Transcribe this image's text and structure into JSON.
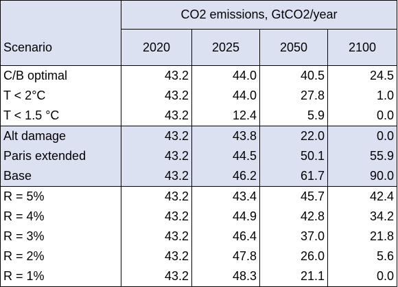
{
  "table": {
    "title": "CO2 emissions, GtCO2/year",
    "scenario_header": "Scenario",
    "years": [
      "2020",
      "2025",
      "2050",
      "2100"
    ],
    "rows": [
      {
        "scenario": "C/B optimal",
        "values": [
          "43.2",
          "44.0",
          "40.5",
          "24.5"
        ]
      },
      {
        "scenario": "T < 2°C",
        "values": [
          "43.2",
          "44.0",
          "27.8",
          "1.0"
        ]
      },
      {
        "scenario": "T < 1.5 °C",
        "values": [
          "43.2",
          "12.4",
          "5.9",
          "0.0"
        ]
      },
      {
        "scenario": "Alt damage",
        "values": [
          "43.2",
          "43.8",
          "22.0",
          "0.0"
        ]
      },
      {
        "scenario": "Paris extended",
        "values": [
          "43.2",
          "44.5",
          "50.1",
          "55.9"
        ]
      },
      {
        "scenario": "Base",
        "values": [
          "43.2",
          "46.2",
          "61.7",
          "90.0"
        ]
      },
      {
        "scenario": "R = 5%",
        "values": [
          "43.2",
          "43.4",
          "45.7",
          "42.4"
        ]
      },
      {
        "scenario": "R = 4%",
        "values": [
          "43.2",
          "44.9",
          "42.8",
          "34.2"
        ]
      },
      {
        "scenario": "R = 3%",
        "values": [
          "43.2",
          "46.4",
          "37.0",
          "21.8"
        ]
      },
      {
        "scenario": "R = 2%",
        "values": [
          "43.2",
          "47.8",
          "26.0",
          "5.6"
        ]
      },
      {
        "scenario": "R = 1%",
        "values": [
          "43.2",
          "48.3",
          "21.1",
          "0.0"
        ]
      }
    ],
    "colors": {
      "header_fill": "#dce1f1",
      "shaded_fill": "#dce1f1",
      "border": "#000000"
    }
  }
}
